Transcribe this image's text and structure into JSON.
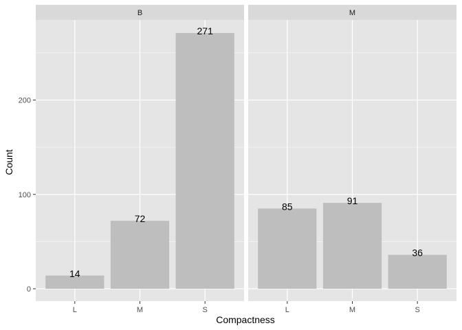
{
  "chart_data": {
    "type": "bar",
    "xlabel": "Compactness",
    "ylabel": "Count",
    "ylim": [
      0,
      285
    ],
    "yticks": [
      0,
      100,
      200
    ],
    "grid": true,
    "categories": [
      "L",
      "M",
      "S"
    ],
    "facets": [
      {
        "label": "B",
        "values": [
          14,
          72,
          271
        ],
        "value_labels": [
          "14",
          "72",
          "271"
        ]
      },
      {
        "label": "M",
        "values": [
          85,
          91,
          36
        ],
        "value_labels": [
          "85",
          "91",
          "36"
        ]
      }
    ],
    "colors": {
      "panel_bg": "#e5e5e5",
      "strip_bg": "#d9d9d9",
      "bar": "#bebebe",
      "grid": "#ffffff",
      "text": "#000000",
      "tick_text": "#4d4d4d"
    }
  }
}
